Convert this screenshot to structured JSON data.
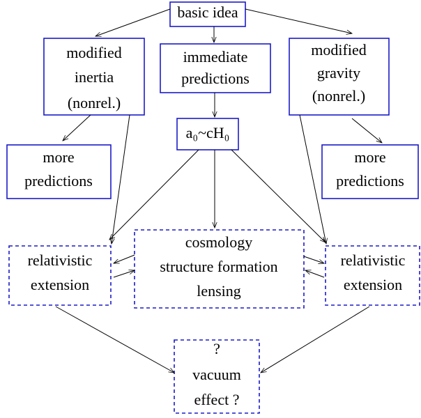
{
  "nodes": [
    {
      "lines": [
        "basic idea"
      ]
    },
    {
      "lines": [
        "modified",
        "inertia",
        "(nonrel.)"
      ]
    },
    {
      "lines": [
        "immediate",
        "predictions"
      ]
    },
    {
      "lines": [
        "modified",
        "gravity",
        "(nonrel.)"
      ]
    },
    {
      "lines": [
        "a₀~cH₀"
      ]
    },
    {
      "lines": [
        "more",
        "predictions"
      ]
    },
    {
      "lines": [
        "more",
        "predictions"
      ]
    },
    {
      "lines": [
        "relativistic",
        "extension"
      ]
    },
    {
      "lines": [
        "cosmology",
        "structure formation",
        "lensing"
      ]
    },
    {
      "lines": [
        "relativistic",
        "extension"
      ]
    },
    {
      "lines": [
        "?",
        "vacuum",
        "effect ?"
      ]
    }
  ]
}
